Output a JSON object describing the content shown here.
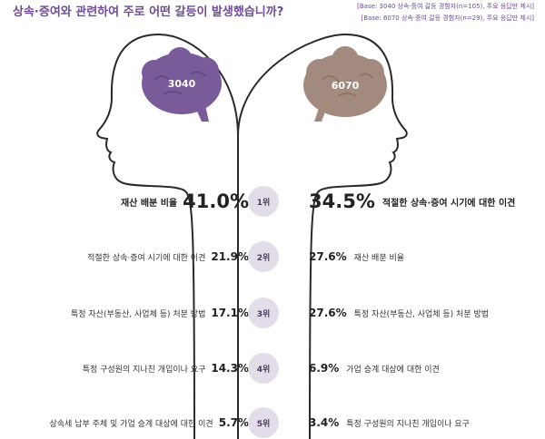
{
  "title": "상속·증여와 관련하여 주로 어떤 갈등이 발생했습니까?",
  "base_notes": [
    "[Base: 3040 상속·증여 갈등 경험자(n=105), 주요 응답만 제시]",
    "[Base: 6070 상속·증여 갈등 경험자(n=29), 주요 응답만 제시]"
  ],
  "colors": {
    "accent": "#6e4c96",
    "brain_3040": "#7a5b9a",
    "brain_6070": "#a28b7e",
    "rank_circle": "#e3ddea"
  },
  "chart_data": {
    "type": "table",
    "title": "상속·증여와 관련하여 주로 어떤 갈등이 발생했습니까?",
    "groups": [
      {
        "name": "3040",
        "items": [
          {
            "rank": "1위",
            "label": "재산 배분 비율",
            "value": 41.0,
            "value_text": "41.0%"
          },
          {
            "rank": "2위",
            "label": "적절한 상속·증여 시기에 대한 이견",
            "value": 21.9,
            "value_text": "21.9%"
          },
          {
            "rank": "3위",
            "label": "특정 자산(부동산, 사업체 등) 처분 방법",
            "value": 17.1,
            "value_text": "17.1%"
          },
          {
            "rank": "4위",
            "label": "특정 구성원의 지나친 개입이나 요구",
            "value": 14.3,
            "value_text": "14.3%"
          },
          {
            "rank": "5위",
            "label": "상속세 납부 주체 및 가업 승계 대상에 대한 이견",
            "value": 5.7,
            "value_text": "5.7%"
          }
        ]
      },
      {
        "name": "6070",
        "items": [
          {
            "rank": "1위",
            "label": "적절한 상속·증여 시기에 대한 이견",
            "value": 34.5,
            "value_text": "34.5%"
          },
          {
            "rank": "2위",
            "label": "재산 배분 비율",
            "value": 27.6,
            "value_text": "27.6%"
          },
          {
            "rank": "3위",
            "label": "특정 자산(부동산, 사업체 등) 처분 방법",
            "value": 27.6,
            "value_text": "27.6%"
          },
          {
            "rank": "4위",
            "label": "가업 승계 대상에 대한 이견",
            "value": 6.9,
            "value_text": "6.9%"
          },
          {
            "rank": "5위",
            "label": "특정 구성원의 지나친 개입이나 요구",
            "value": 3.4,
            "value_text": "3.4%"
          }
        ]
      }
    ],
    "ranks": [
      "1위",
      "2위",
      "3위",
      "4위",
      "5위"
    ]
  }
}
